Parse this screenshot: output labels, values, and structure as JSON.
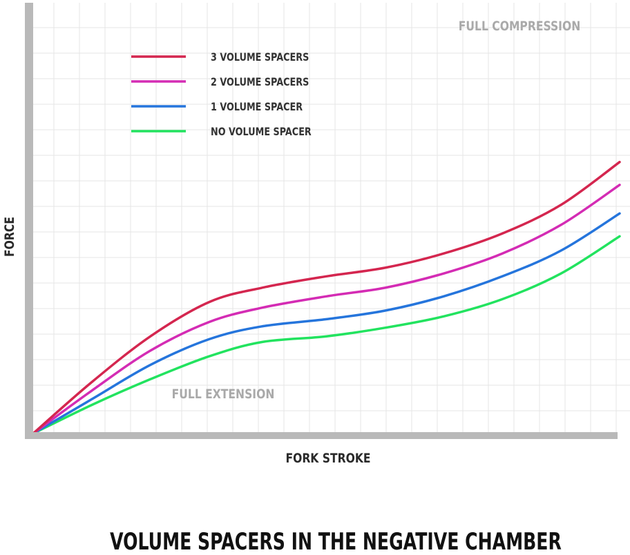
{
  "chart_data": {
    "type": "line",
    "title": "VOLUME SPACERS IN THE NEGATIVE CHAMBER",
    "xlabel": "FORK STROKE",
    "ylabel": "FORCE",
    "xlim": [
      0,
      100
    ],
    "ylim": [
      0,
      100
    ],
    "grid": true,
    "legend_position": "top-left",
    "annotations": [
      {
        "text": "FULL COMPRESSION",
        "x": 92,
        "y": 95
      },
      {
        "text": "FULL EXTENSION",
        "x": 33,
        "y": 10
      }
    ],
    "series": [
      {
        "name": "3 VOLUME SPACERS",
        "color": "#d4264f",
        "x": [
          0,
          10,
          20,
          30,
          39,
          50,
          60,
          70,
          80,
          90,
          100
        ],
        "y": [
          0,
          18,
          34,
          46,
          51,
          55,
          58,
          63,
          70,
          80,
          95
        ]
      },
      {
        "name": "2 VOLUME SPACERS",
        "color": "#d42cb4",
        "x": [
          0,
          10,
          20,
          30,
          39,
          50,
          60,
          70,
          80,
          90,
          100
        ],
        "y": [
          0,
          15,
          29,
          39,
          44,
          48,
          51,
          56,
          63,
          73,
          87
        ]
      },
      {
        "name": "1 VOLUME SPACER",
        "color": "#2575dc",
        "x": [
          0,
          10,
          20,
          30,
          39,
          50,
          60,
          70,
          80,
          90,
          100
        ],
        "y": [
          0,
          12,
          24,
          33,
          37.5,
          40,
          43,
          48,
          55,
          64,
          77
        ]
      },
      {
        "name": "NO VOLUME SPACER",
        "color": "#22e35f",
        "x": [
          0,
          10,
          20,
          30,
          39,
          50,
          60,
          70,
          80,
          90,
          100
        ],
        "y": [
          0,
          10,
          19,
          27,
          32,
          34,
          37,
          41,
          47,
          56,
          69
        ]
      }
    ]
  }
}
